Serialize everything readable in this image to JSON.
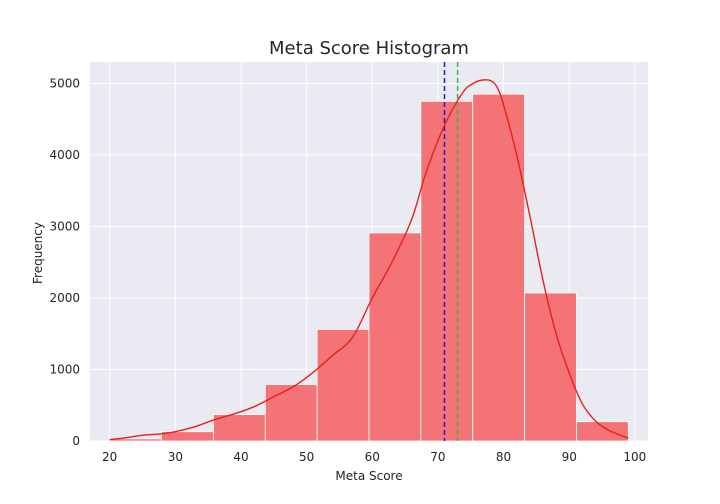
{
  "chart_data": {
    "type": "bar",
    "title": "Meta Score Histogram",
    "xlabel": "Meta Score",
    "ylabel": "Frequency",
    "xlim": [
      17.0,
      102.0
    ],
    "ylim": [
      0,
      5300
    ],
    "xticks": [
      20,
      30,
      40,
      50,
      60,
      70,
      80,
      90,
      100
    ],
    "yticks": [
      0,
      1000,
      2000,
      3000,
      4000,
      5000
    ],
    "grid": true,
    "bins": [
      {
        "x0": 20.0,
        "x1": 27.9,
        "count": 30
      },
      {
        "x0": 27.9,
        "x1": 35.8,
        "count": 130
      },
      {
        "x0": 35.8,
        "x1": 43.7,
        "count": 370
      },
      {
        "x0": 43.7,
        "x1": 51.6,
        "count": 790
      },
      {
        "x0": 51.6,
        "x1": 59.5,
        "count": 1560
      },
      {
        "x0": 59.5,
        "x1": 67.4,
        "count": 2910
      },
      {
        "x0": 67.4,
        "x1": 75.3,
        "count": 4750
      },
      {
        "x0": 75.3,
        "x1": 83.2,
        "count": 4850
      },
      {
        "x0": 83.2,
        "x1": 91.1,
        "count": 2070
      },
      {
        "x0": 91.1,
        "x1": 99.0,
        "count": 270
      }
    ],
    "kde": {
      "x": [
        20,
        22,
        25,
        28,
        30,
        33,
        36,
        39,
        42,
        45,
        48,
        51,
        54,
        57,
        60,
        63,
        66,
        68,
        70,
        72,
        74,
        75,
        76,
        77,
        78,
        79,
        80,
        82,
        84,
        86,
        88,
        90,
        92,
        94,
        96,
        99
      ],
      "y": [
        20,
        40,
        80,
        100,
        130,
        200,
        300,
        380,
        480,
        620,
        760,
        960,
        1200,
        1450,
        2000,
        2500,
        3100,
        3700,
        4200,
        4600,
        4900,
        4980,
        5030,
        5050,
        5040,
        4950,
        4700,
        4000,
        3150,
        2250,
        1500,
        950,
        520,
        280,
        150,
        40
      ]
    },
    "reference_lines": [
      {
        "x": 71.0,
        "color": "#1a1acc",
        "style": "dashed"
      },
      {
        "x": 73.0,
        "color": "#3dbb3d",
        "style": "dashed"
      }
    ],
    "bar_color": "#f47376",
    "kde_color": "#e8201b",
    "plot_bg": "#eaeaf2"
  }
}
